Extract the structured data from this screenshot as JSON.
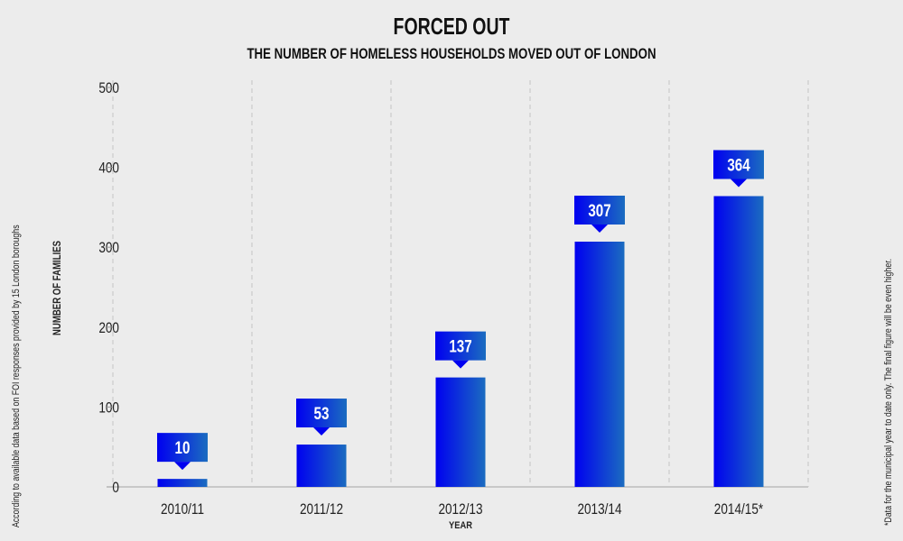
{
  "chart_data": {
    "type": "bar",
    "title": "FORCED OUT",
    "subtitle": "THE NUMBER OF HOMELESS HOUSEHOLDS MOVED OUT OF LONDON",
    "xlabel": "YEAR",
    "ylabel": "NUMBER OF FAMILIES",
    "categories": [
      "2010/11",
      "2011/12",
      "2012/13",
      "2013/14",
      "2014/15*"
    ],
    "values": [
      10,
      53,
      137,
      307,
      364
    ],
    "data_labels": [
      "10",
      "53",
      "137",
      "307",
      "364"
    ],
    "ylim": [
      0,
      500
    ],
    "yticks": [
      "0",
      "100",
      "200",
      "300",
      "400",
      "500"
    ],
    "grid": "vertical dashed separators",
    "colors": {
      "bar_start": "#0000f0",
      "bar_end": "#1b6cc0",
      "background": "#ececec"
    },
    "notes": {
      "left": "According to available data based on FOI responses provided by 15 London boroughs",
      "right": "*Data for the municipal year to date only. The final figure will be even higher."
    }
  }
}
